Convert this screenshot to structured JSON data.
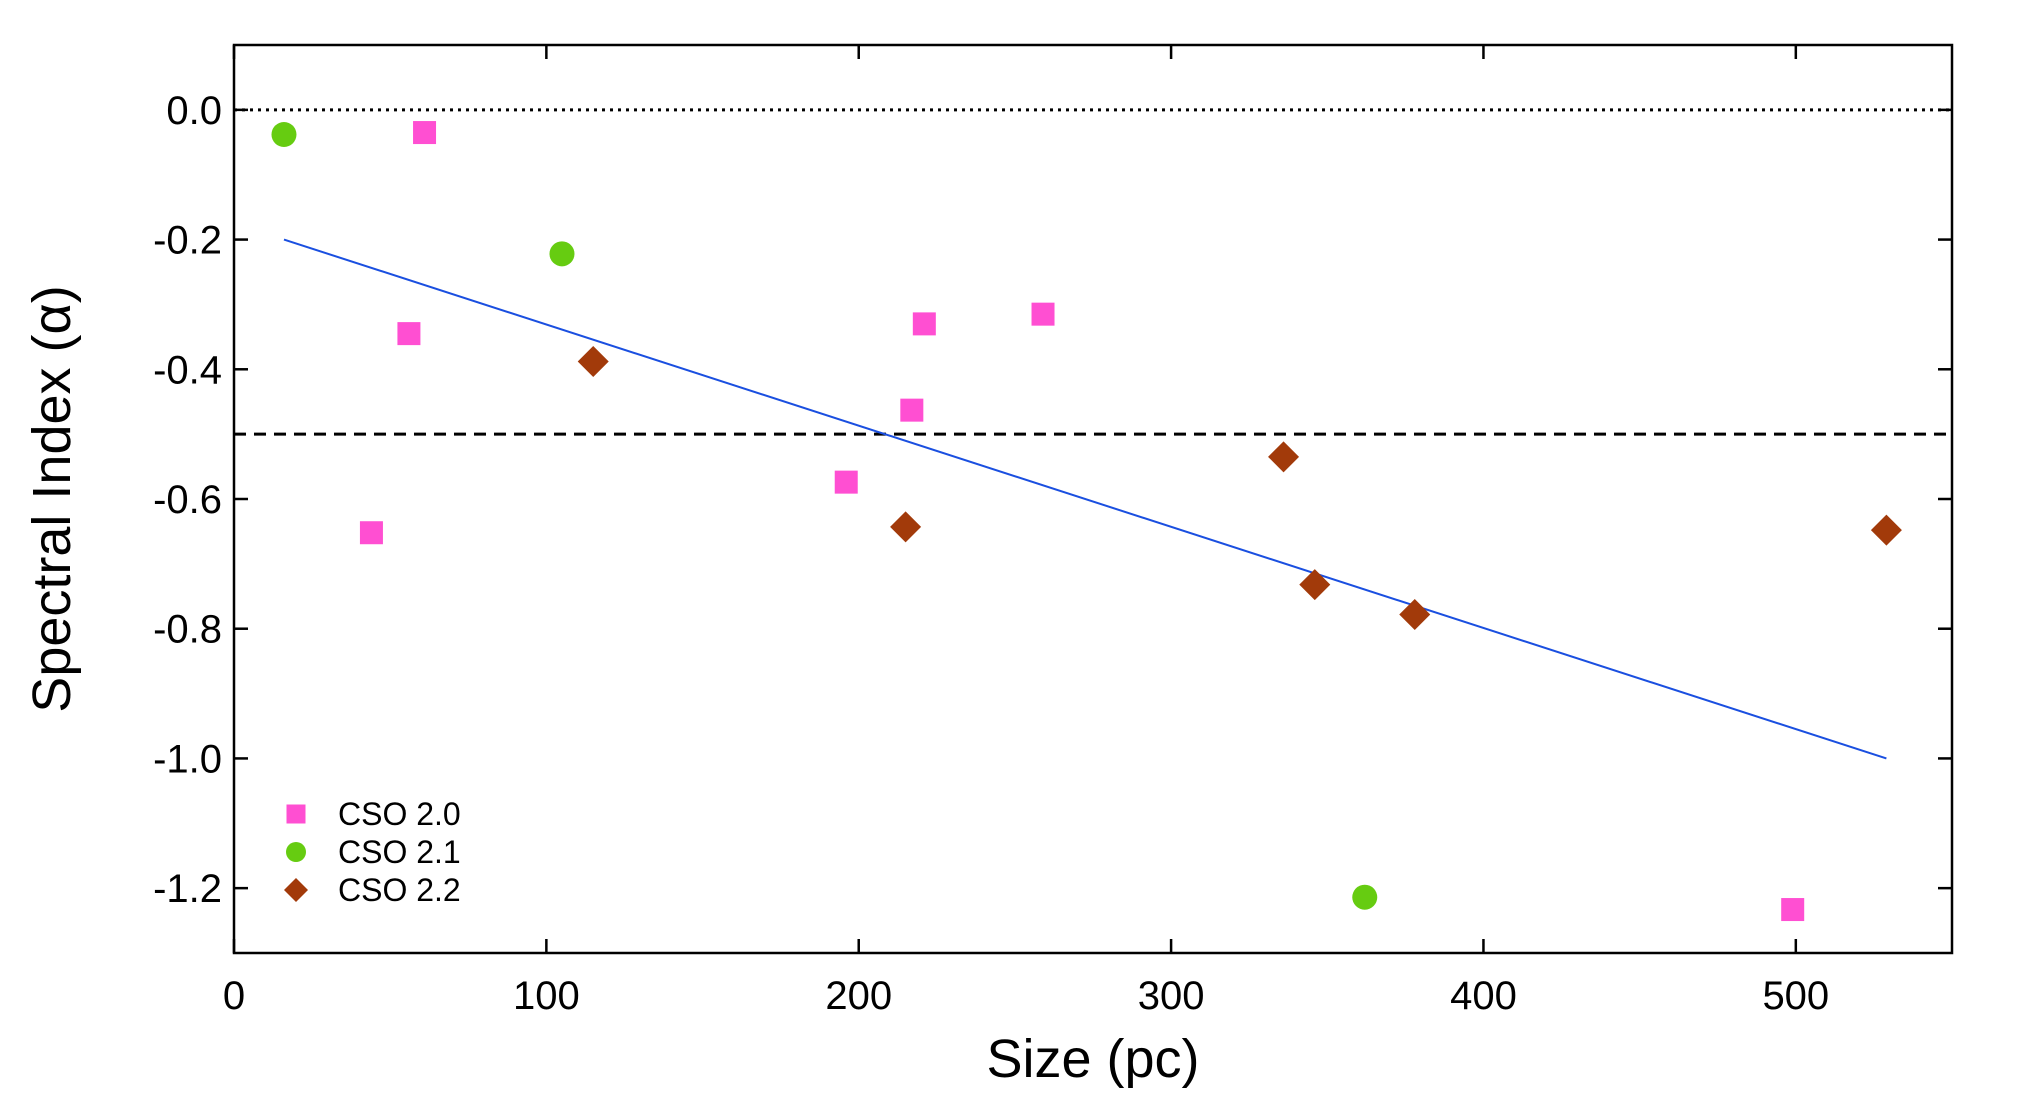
{
  "chart_data": {
    "type": "scatter",
    "title": "",
    "xlabel": "Size (pc)",
    "ylabel": "Spectral Index (α)",
    "xlim": [
      0,
      550
    ],
    "ylim": [
      -1.3,
      0.1
    ],
    "x_ticks": [
      0,
      100,
      200,
      300,
      400,
      500
    ],
    "x_tick_labels": [
      "0",
      "100",
      "200",
      "300",
      "400",
      "500"
    ],
    "y_ticks": [
      0.0,
      -0.2,
      -0.4,
      -0.6,
      -0.8,
      -1.0,
      -1.2
    ],
    "y_tick_labels": [
      "0.0",
      "-0.2",
      "-0.4",
      "-0.6",
      "-0.8",
      "-1.0",
      "-1.2"
    ],
    "grid": false,
    "legend_position": "bottom-left",
    "series": [
      {
        "name": "CSO 2.0",
        "marker": "square",
        "color": "#FF4FD2",
        "points": [
          {
            "x": 61,
            "y": -0.035
          },
          {
            "x": 56,
            "y": -0.345
          },
          {
            "x": 44,
            "y": -0.652
          },
          {
            "x": 196,
            "y": -0.574
          },
          {
            "x": 217,
            "y": -0.463
          },
          {
            "x": 221,
            "y": -0.33
          },
          {
            "x": 259,
            "y": -0.315
          },
          {
            "x": 499,
            "y": -1.233
          }
        ]
      },
      {
        "name": "CSO 2.1",
        "marker": "circle",
        "color": "#66CC11",
        "points": [
          {
            "x": 16,
            "y": -0.038
          },
          {
            "x": 105,
            "y": -0.222
          },
          {
            "x": 362,
            "y": -1.214
          }
        ]
      },
      {
        "name": "CSO 2.2",
        "marker": "diamond",
        "color": "#A23A0A",
        "points": [
          {
            "x": 115,
            "y": -0.388
          },
          {
            "x": 215,
            "y": -0.643
          },
          {
            "x": 336,
            "y": -0.535
          },
          {
            "x": 346,
            "y": -0.732
          },
          {
            "x": 378,
            "y": -0.778
          },
          {
            "x": 529,
            "y": -0.648
          }
        ]
      }
    ],
    "fit_line": {
      "color": "#1A4FE0",
      "points": [
        {
          "x": 16,
          "y": -0.2
        },
        {
          "x": 529,
          "y": -1.0
        }
      ]
    },
    "reference_lines": [
      {
        "y": 0.0,
        "style": "dotted",
        "color": "#000000"
      },
      {
        "y": -0.5,
        "style": "dashed",
        "color": "#000000"
      }
    ]
  }
}
